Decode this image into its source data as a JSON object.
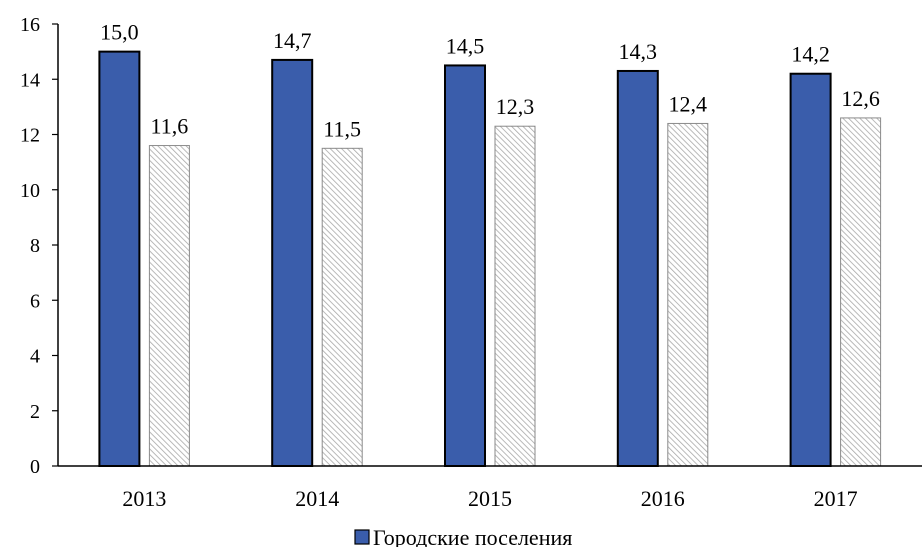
{
  "chart_data": {
    "type": "bar",
    "categories": [
      "2013",
      "2014",
      "2015",
      "2016",
      "2017"
    ],
    "series": [
      {
        "name": "Городские поселения",
        "values": [
          15.0,
          14.7,
          14.5,
          14.3,
          14.2
        ],
        "labels": [
          "15,0",
          "14,7",
          "14,5",
          "14,3",
          "14,2"
        ],
        "color": "#3A5DAB",
        "pattern": "solid"
      },
      {
        "values": [
          11.6,
          11.5,
          12.3,
          12.4,
          12.6
        ],
        "labels": [
          "11,6",
          "11,5",
          "12,3",
          "12,4",
          "12,6"
        ],
        "color": "#9E9E9E",
        "pattern": "diagonal-hatch"
      }
    ],
    "ylim": [
      0,
      16
    ],
    "yticks": [
      "0",
      "2",
      "4",
      "6",
      "8",
      "10",
      "12",
      "14",
      "16"
    ],
    "grid": false,
    "legend": "bottom-center",
    "title": "",
    "xlabel": "",
    "ylabel": ""
  }
}
